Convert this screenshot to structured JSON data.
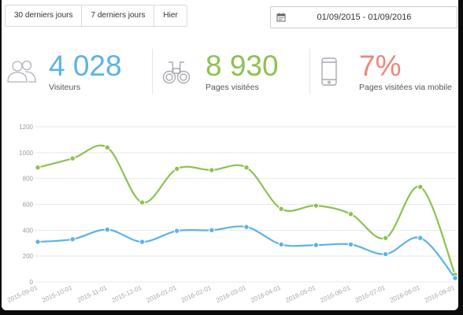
{
  "toolbar": {
    "ranges": [
      "30 derniers jours",
      "7 derniers jours",
      "Hier"
    ],
    "date_range": "01/09/2015 - 01/09/2016"
  },
  "stats": [
    {
      "value": "4 028",
      "label": "Visiteurs",
      "color": "#5bb3e6",
      "icon": "users-icon"
    },
    {
      "value": "8 930",
      "label": "Pages visitées",
      "color": "#8dc152",
      "icon": "binoculars-icon"
    },
    {
      "value": "7%",
      "label": "Pages visitées via mobile",
      "color": "#f0847a",
      "icon": "mobile-phone-icon"
    }
  ],
  "chart_data": {
    "type": "line",
    "x": [
      "2015-09-01",
      "2015-10-01",
      "2015-11-01",
      "2015-12-01",
      "2016-01-01",
      "2016-02-01",
      "2016-03-01",
      "2016-04-01",
      "2016-05-01",
      "2016-06-01",
      "2016-07-01",
      "2016-08-01",
      "2016-09-01"
    ],
    "ylim": [
      0,
      1200
    ],
    "yticks": [
      0,
      200,
      400,
      600,
      800,
      1000,
      1200
    ],
    "grid": true,
    "series": [
      {
        "color": "#8dc152",
        "values": [
          885,
          955,
          1040,
          615,
          875,
          865,
          885,
          565,
          590,
          525,
          340,
          735,
          55
        ]
      },
      {
        "color": "#5bb3e6",
        "values": [
          310,
          330,
          405,
          310,
          395,
          400,
          425,
          290,
          285,
          290,
          215,
          340,
          30
        ]
      }
    ]
  }
}
